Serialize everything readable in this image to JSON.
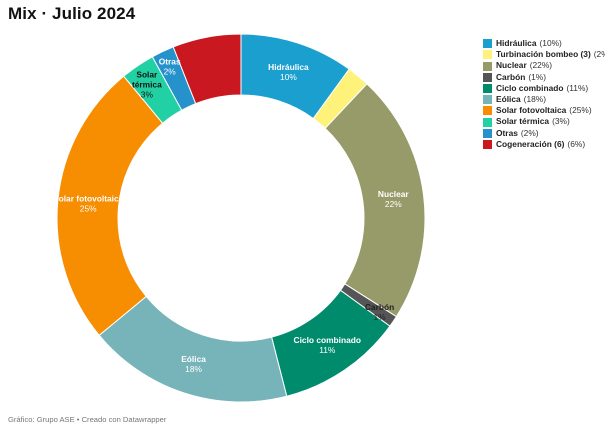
{
  "title": "Mix · Julio 2024",
  "footer": "Gráfico: Grupo ASE • Creado con Datawrapper",
  "chart_data": {
    "type": "pie",
    "title": "Mix · Julio 2024",
    "legend_position": "top-right",
    "slices": [
      {
        "name": "Hidráulica",
        "chart_label": "Hidráulica",
        "value": 10,
        "pct_text": "10%",
        "color": "#1a9fcf",
        "label_color": "#ffffff",
        "show_label": true
      },
      {
        "name": "Turbinación bombeo (3)",
        "chart_label": "",
        "value": 2,
        "pct_text": "2%",
        "color": "#fff27a",
        "label_color": "#222222",
        "show_label": false
      },
      {
        "name": "Nuclear",
        "chart_label": "Nuclear",
        "value": 22,
        "pct_text": "22%",
        "color": "#979b6a",
        "label_color": "#ffffff",
        "show_label": true
      },
      {
        "name": "Carbón",
        "chart_label": "Carbón",
        "value": 1,
        "pct_text": "1%",
        "color": "#555555",
        "label_color": "#222222",
        "show_label": true
      },
      {
        "name": "Ciclo combinado",
        "chart_label": "Ciclo combinado",
        "value": 11,
        "pct_text": "11%",
        "color": "#008c6c",
        "label_color": "#ffffff",
        "show_label": true
      },
      {
        "name": "Eólica",
        "chart_label": "Eólica",
        "value": 18,
        "pct_text": "18%",
        "color": "#76b4b9",
        "label_color": "#ffffff",
        "show_label": true
      },
      {
        "name": "Solar fotovoltaica",
        "chart_label": "Solar fotovoltaica",
        "value": 25,
        "pct_text": "25%",
        "color": "#f78d00",
        "label_color": "#ffffff",
        "show_label": true
      },
      {
        "name": "Solar térmica",
        "chart_label": "Solar térmica",
        "value": 3,
        "pct_text": "3%",
        "color": "#22d1a3",
        "label_color": "#111111",
        "show_label": true
      },
      {
        "name": "Otras",
        "chart_label": "Otras",
        "value": 2,
        "pct_text": "2%",
        "color": "#2592cc",
        "label_color": "#ffffff",
        "show_label": true
      },
      {
        "name": "Cogeneración (6)",
        "chart_label": "",
        "value": 6,
        "pct_text": "6%",
        "color": "#c9181f",
        "label_color": "#ffffff",
        "show_label": false
      }
    ]
  }
}
